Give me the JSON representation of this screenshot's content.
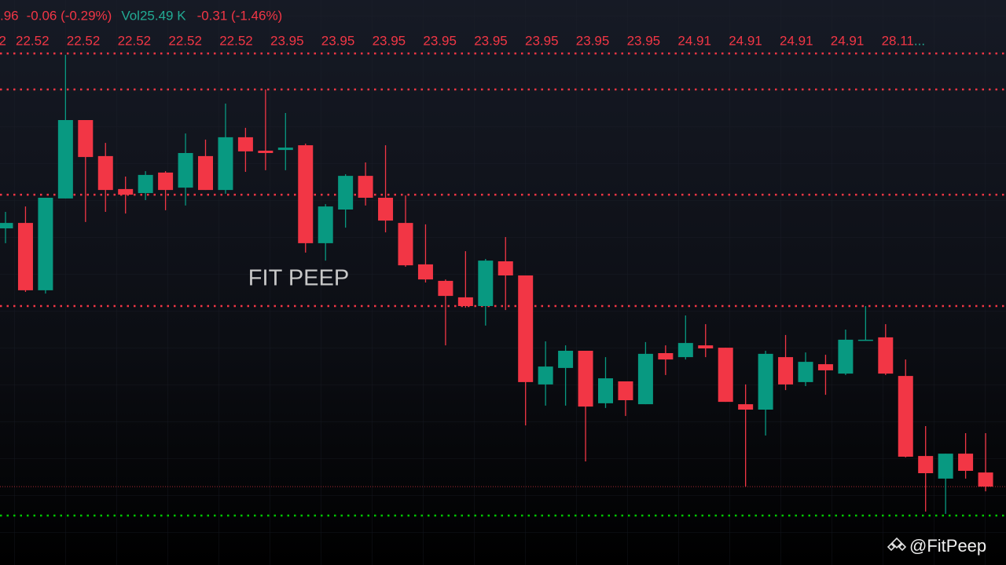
{
  "chart_data": {
    "type": "candlestick",
    "header": [
      {
        "text": ".96",
        "color": "#f23645"
      },
      {
        "text": "-0.06 (-0.29%)",
        "color": "#f23645"
      },
      {
        "text": "Vol",
        "color": "#22ab94"
      },
      {
        "text": "25.49 K",
        "color": "#22ab94"
      },
      {
        "text": "-0.31 (-1.46%)",
        "color": "#f23645"
      }
    ],
    "level_labels": [
      "2",
      "22.52",
      "22.52",
      "22.52",
      "22.52",
      "22.52",
      "23.95",
      "23.95",
      "23.95",
      "23.95",
      "23.95",
      "23.95",
      "23.95",
      "23.95",
      "24.91",
      "24.91",
      "24.91",
      "24.91",
      "28.11"
    ],
    "level_labels_overflow": "...",
    "watermark": "FIT PEEP",
    "credit": "@FitPeep",
    "ylim": [
      20.6,
      23.0
    ],
    "up_color": "#089981",
    "down_color": "#f23645",
    "levels": [
      {
        "value": 22.773,
        "color": "#f23645"
      },
      {
        "value": 22.62,
        "color": "#f23645"
      },
      {
        "value": 22.173,
        "color": "#f23645"
      },
      {
        "value": 21.7,
        "color": "#f23645"
      },
      {
        "value": 20.81,
        "color": "#00c800"
      }
    ],
    "last_price": 20.933,
    "open": [
      22.03,
      22.053,
      21.767,
      22.157,
      22.49,
      22.337,
      22.197,
      22.18,
      22.267,
      22.203,
      22.337,
      22.193,
      22.417,
      22.36,
      22.363,
      22.383,
      21.967,
      22.11,
      22.253,
      22.16,
      22.053,
      21.877,
      21.807,
      21.737,
      21.7,
      21.89,
      21.83,
      21.367,
      21.437,
      21.51,
      21.287,
      21.38,
      21.283,
      21.5,
      21.483,
      21.533,
      21.523,
      21.283,
      21.26,
      21.483,
      21.377,
      21.453,
      21.413,
      21.553,
      21.567,
      21.403,
      21.063,
      20.967,
      21.073,
      20.993
    ],
    "high": [
      22.1,
      22.123,
      22.16,
      22.767,
      22.49,
      22.393,
      22.25,
      22.273,
      22.273,
      22.433,
      22.407,
      22.56,
      22.457,
      22.62,
      22.52,
      22.39,
      22.133,
      22.26,
      22.31,
      22.383,
      22.17,
      22.047,
      21.813,
      21.933,
      21.9,
      21.993,
      21.83,
      21.55,
      21.533,
      21.51,
      21.483,
      21.38,
      21.547,
      21.533,
      21.66,
      21.623,
      21.523,
      21.367,
      21.51,
      21.577,
      21.503,
      21.493,
      21.6,
      21.7,
      21.623,
      21.473,
      21.19,
      21.073,
      21.16,
      21.16
    ],
    "low": [
      21.967,
      21.76,
      21.753,
      22.157,
      22.057,
      22.1,
      22.093,
      22.15,
      22.107,
      22.127,
      22.193,
      22.177,
      22.27,
      22.277,
      22.277,
      21.927,
      21.893,
      22.033,
      22.127,
      22.013,
      21.867,
      21.8,
      21.533,
      21.693,
      21.617,
      21.683,
      21.193,
      21.277,
      21.277,
      21.04,
      21.267,
      21.233,
      21.283,
      21.407,
      21.473,
      21.483,
      21.293,
      20.933,
      21.15,
      21.343,
      21.36,
      21.323,
      21.407,
      21.553,
      21.407,
      21.057,
      20.827,
      20.817,
      20.967,
      20.913
    ],
    "close": [
      22.053,
      21.767,
      22.16,
      22.49,
      22.333,
      22.193,
      22.173,
      22.257,
      22.193,
      22.35,
      22.193,
      22.417,
      22.357,
      22.35,
      22.373,
      21.967,
      22.123,
      22.253,
      22.16,
      22.063,
      21.873,
      21.813,
      21.743,
      21.7,
      21.893,
      21.83,
      21.377,
      21.443,
      21.51,
      21.273,
      21.393,
      21.3,
      21.497,
      21.473,
      21.543,
      21.52,
      21.293,
      21.26,
      21.497,
      21.367,
      21.463,
      21.427,
      21.557,
      21.557,
      21.413,
      21.06,
      20.99,
      21.073,
      21.0,
      20.933
    ]
  }
}
